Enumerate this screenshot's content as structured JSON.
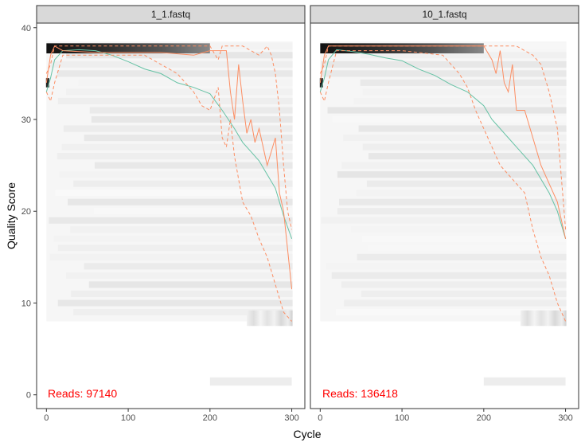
{
  "chart_data": {
    "type": "line",
    "xlabel": "Cycle",
    "ylabel": "Quality Score",
    "xlim": [
      -12,
      316
    ],
    "ylim": [
      -1.5,
      40.5
    ],
    "x_ticks": [
      0,
      100,
      200,
      300
    ],
    "y_ticks": [
      0,
      10,
      20,
      30,
      40
    ],
    "grid": false,
    "colors": {
      "mean": "#66C2A5",
      "quartile": "#FC8D62",
      "reads_label": "#FF0000",
      "heatmap_dark": "#000000",
      "strip": "#D9D9D9"
    },
    "panels": [
      {
        "title": "1_1.fastq",
        "reads_text": "Reads:  97140",
        "series": [
          {
            "role": "mean",
            "x": [
              0,
              5,
              10,
              20,
              40,
              60,
              80,
              100,
              120,
              140,
              160,
              180,
              200,
              215,
              230,
              240,
              250,
              260,
              270,
              280,
              290,
              300
            ],
            "y": [
              33,
              34.5,
              36.5,
              37.5,
              37.6,
              37.5,
              37,
              36.3,
              35.5,
              35,
              34,
              33.5,
              32.8,
              31,
              29,
              27.5,
              26.5,
              25.5,
              24,
              22.5,
              19.5,
              17
            ]
          },
          {
            "role": "median",
            "x": [
              0,
              5,
              10,
              20,
              60,
              100,
              140,
              180,
              200,
              220,
              225,
              230,
              235,
              240,
              245,
              250,
              255,
              260,
              270,
              280,
              285,
              290,
              300
            ],
            "y": [
              34,
              37,
              38,
              37.5,
              37.3,
              37.3,
              37.3,
              37,
              37.5,
              37.5,
              33,
              30,
              36,
              32,
              28.5,
              30,
              27.5,
              29,
              25,
              28,
              22,
              20,
              11.5
            ]
          },
          {
            "role": "q25",
            "x": [
              0,
              5,
              10,
              20,
              60,
              100,
              120,
              160,
              180,
              190,
              200,
              210,
              215,
              220,
              225,
              230,
              240,
              250,
              260,
              270,
              280,
              290,
              300
            ],
            "y": [
              33,
              32,
              34,
              37,
              37,
              37,
              37,
              35,
              33,
              31.5,
              31,
              33.5,
              28,
              27,
              30,
              26,
              21,
              19.5,
              17,
              15,
              12,
              9,
              8
            ]
          },
          {
            "role": "q75",
            "x": [
              0,
              5,
              10,
              20,
              100,
              150,
              200,
              210,
              215,
              230,
              240,
              260,
              270,
              275,
              280,
              285,
              290,
              295,
              300
            ],
            "y": [
              35,
              36,
              38,
              38,
              38,
              38,
              38,
              36.5,
              38,
              38,
              38,
              37,
              38,
              37,
              35,
              31,
              25,
              20,
              18
            ]
          }
        ]
      },
      {
        "title": "10_1.fastq",
        "reads_text": "Reads:  136418",
        "series": [
          {
            "role": "mean",
            "x": [
              0,
              5,
              10,
              20,
              40,
              60,
              80,
              100,
              120,
              140,
              160,
              180,
              200,
              210,
              220,
              230,
              240,
              250,
              260,
              270,
              280,
              290,
              300
            ],
            "y": [
              33,
              34.5,
              36.5,
              37.6,
              37.4,
              37.1,
              36.7,
              36.4,
              35.5,
              34.8,
              33.8,
              33,
              31.5,
              30,
              29,
              28,
              27,
              26,
              25,
              23.5,
              22,
              20,
              17
            ]
          },
          {
            "role": "median",
            "x": [
              0,
              5,
              10,
              20,
              100,
              180,
              200,
              210,
              215,
              220,
              225,
              230,
              235,
              240,
              250,
              260,
              270,
              280,
              290,
              300
            ],
            "y": [
              34,
              37,
              38,
              38,
              38,
              38,
              38,
              36.5,
              35,
              37.5,
              34,
              33,
              36,
              31,
              31,
              28,
              25,
              23,
              21,
              17
            ]
          },
          {
            "role": "q25",
            "x": [
              0,
              5,
              10,
              20,
              100,
              150,
              170,
              180,
              190,
              200,
              210,
              220,
              230,
              240,
              250,
              260,
              270,
              280,
              290,
              300
            ],
            "y": [
              33,
              32,
              34,
              37.5,
              37.5,
              37,
              35,
              33.5,
              31,
              29,
              27,
              25,
              24,
              23,
              22,
              18,
              15,
              13,
              10,
              8
            ]
          },
          {
            "role": "q75",
            "x": [
              0,
              5,
              10,
              20,
              240,
              250,
              260,
              270,
              280,
              290,
              300
            ],
            "y": [
              35,
              36,
              38,
              38,
              38,
              37.5,
              37,
              36,
              33,
              29,
              18
            ]
          }
        ]
      }
    ]
  }
}
